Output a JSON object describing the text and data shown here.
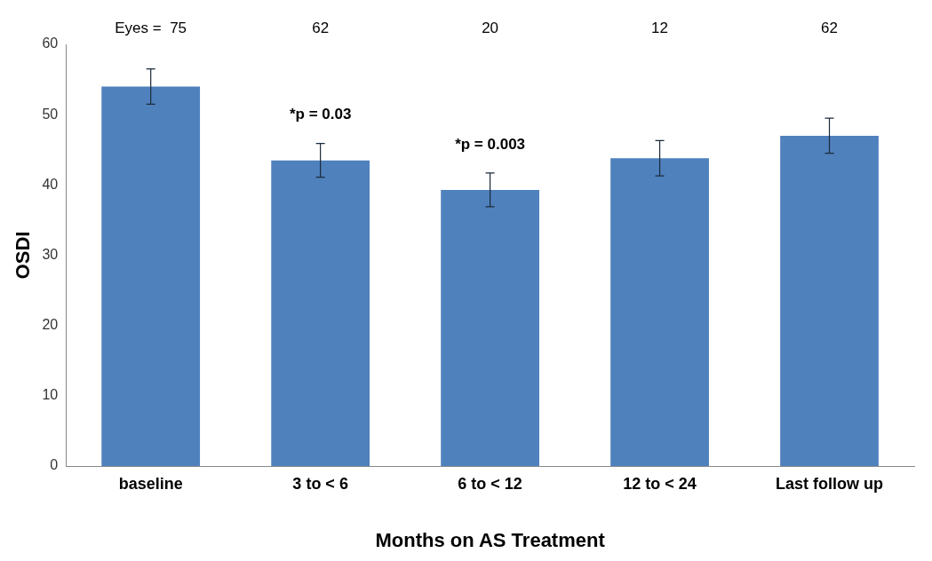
{
  "chart_data": {
    "type": "bar",
    "categories": [
      "baseline",
      "3 to < 6",
      "6 to < 12",
      "12 to < 24",
      "Last follow up"
    ],
    "values": [
      54,
      43.5,
      39.3,
      43.8,
      47
    ],
    "errors": [
      2.5,
      2.4,
      2.4,
      2.5,
      2.5
    ],
    "color": "#4f81bd",
    "xlabel": "Months on AS Treatment",
    "ylabel": "OSDI",
    "ylim": [
      0,
      60
    ],
    "yticks": [
      0,
      10,
      20,
      30,
      40,
      50,
      60
    ],
    "grid": false,
    "legend": false,
    "annotations": [
      "Eyes =  75",
      "62",
      "20",
      "12",
      "62",
      "*p = 0.03",
      "*p = 0.003"
    ]
  }
}
